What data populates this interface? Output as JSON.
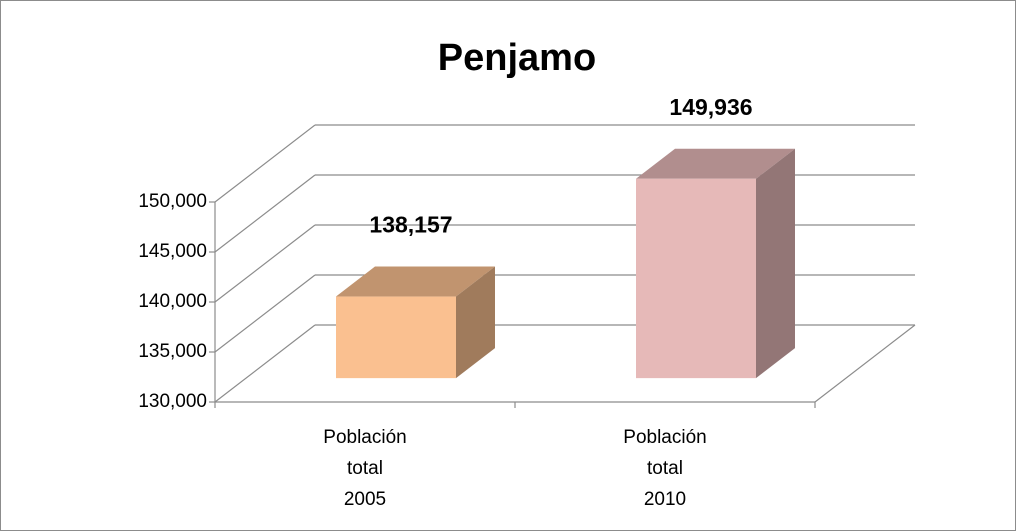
{
  "chart_data": {
    "type": "bar3d",
    "title": "Penjamo",
    "categories": [
      "Población total 2005",
      "Población total 2010"
    ],
    "values": [
      138157,
      149936
    ],
    "value_labels": [
      "138,157",
      "149,936"
    ],
    "colors": [
      "#fac090",
      "#e6b9b8"
    ],
    "ylim": [
      130000,
      150000
    ],
    "yticks": [
      {
        "value": 130000,
        "label": "130,000"
      },
      {
        "value": 135000,
        "label": "135,000"
      },
      {
        "value": 140000,
        "label": "140,000"
      },
      {
        "value": 145000,
        "label": "145,000"
      },
      {
        "value": 150000,
        "label": "150,000"
      }
    ],
    "grid": true
  }
}
